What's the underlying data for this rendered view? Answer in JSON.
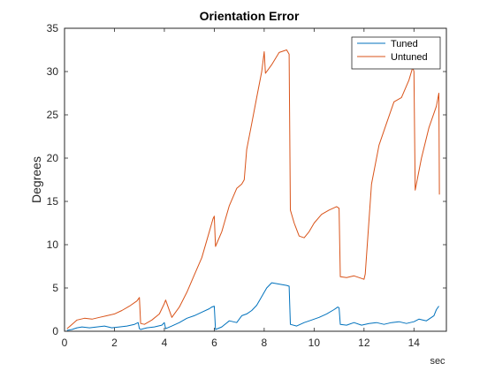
{
  "chart_data": {
    "type": "line",
    "title": "Orientation Error",
    "xlabel": "sec",
    "ylabel": "Degrees",
    "xlim": [
      0,
      15.3
    ],
    "ylim": [
      0,
      35
    ],
    "xticks": [
      0,
      2,
      4,
      6,
      8,
      10,
      12,
      14
    ],
    "yticks": [
      0,
      5,
      10,
      15,
      20,
      25,
      30,
      35
    ],
    "grid": false,
    "legend": "top-right",
    "series": [
      {
        "name": "Tuned",
        "color": "#0072BD",
        "x": [
          0.1,
          0.3,
          0.5,
          0.7,
          1.0,
          1.3,
          1.6,
          1.9,
          2.2,
          2.5,
          2.8,
          2.95,
          3.0,
          3.05,
          3.3,
          3.6,
          3.9,
          4.0,
          4.05,
          4.3,
          4.6,
          4.9,
          5.2,
          5.5,
          5.8,
          5.9,
          6.0,
          6.05,
          6.3,
          6.6,
          6.9,
          7.1,
          7.3,
          7.5,
          7.7,
          7.9,
          8.1,
          8.3,
          8.5,
          8.7,
          8.9,
          9.0,
          9.05,
          9.3,
          9.6,
          9.9,
          10.2,
          10.5,
          10.8,
          10.95,
          11.0,
          11.05,
          11.3,
          11.6,
          11.9,
          12.2,
          12.5,
          12.8,
          13.1,
          13.4,
          13.7,
          14.0,
          14.2,
          14.5,
          14.8,
          14.9,
          15.0
        ],
        "y": [
          0.1,
          0.2,
          0.4,
          0.5,
          0.4,
          0.5,
          0.6,
          0.4,
          0.5,
          0.6,
          0.8,
          1.0,
          0.3,
          0.2,
          0.4,
          0.5,
          0.7,
          1.0,
          0.3,
          0.6,
          1.0,
          1.5,
          1.8,
          2.2,
          2.6,
          2.8,
          2.9,
          0.2,
          0.5,
          1.2,
          1.0,
          1.8,
          2.0,
          2.4,
          3.0,
          4.0,
          5.0,
          5.6,
          5.5,
          5.4,
          5.3,
          5.2,
          0.8,
          0.6,
          1.0,
          1.3,
          1.6,
          2.0,
          2.5,
          2.8,
          2.7,
          0.8,
          0.7,
          1.0,
          0.7,
          0.9,
          1.0,
          0.8,
          1.0,
          1.1,
          0.9,
          1.1,
          1.4,
          1.2,
          1.8,
          2.5,
          2.9
        ]
      },
      {
        "name": "Untuned",
        "color": "#D95319",
        "x": [
          0.1,
          0.3,
          0.5,
          0.8,
          1.1,
          1.4,
          1.7,
          2.0,
          2.3,
          2.6,
          2.9,
          3.0,
          3.05,
          3.2,
          3.5,
          3.8,
          4.0,
          4.05,
          4.3,
          4.6,
          4.9,
          5.2,
          5.5,
          5.8,
          5.95,
          6.0,
          6.05,
          6.3,
          6.6,
          6.9,
          7.1,
          7.2,
          7.3,
          7.5,
          7.7,
          7.9,
          8.0,
          8.05,
          8.3,
          8.6,
          8.9,
          9.0,
          9.05,
          9.2,
          9.4,
          9.6,
          9.8,
          10.0,
          10.3,
          10.6,
          10.9,
          11.0,
          11.05,
          11.3,
          11.6,
          11.9,
          12.0,
          12.05,
          12.3,
          12.6,
          12.9,
          13.2,
          13.5,
          13.8,
          13.9,
          13.95,
          14.0,
          14.05,
          14.3,
          14.6,
          14.9,
          15.0,
          15.02
        ],
        "y": [
          0.3,
          0.8,
          1.3,
          1.5,
          1.4,
          1.6,
          1.8,
          2.0,
          2.4,
          2.9,
          3.5,
          3.9,
          0.9,
          0.8,
          1.3,
          2.0,
          3.2,
          3.6,
          1.6,
          2.8,
          4.5,
          6.5,
          8.5,
          11.5,
          13.0,
          13.3,
          9.8,
          11.5,
          14.5,
          16.5,
          17.0,
          17.5,
          21.0,
          24.0,
          27.0,
          30.0,
          32.3,
          29.8,
          30.8,
          32.2,
          32.5,
          32.0,
          14.0,
          12.5,
          11.0,
          10.8,
          11.5,
          12.5,
          13.5,
          14.0,
          14.4,
          14.2,
          6.3,
          6.2,
          6.4,
          6.1,
          6.0,
          6.6,
          17.0,
          21.5,
          24.0,
          26.5,
          27.0,
          29.0,
          30.0,
          30.5,
          30.0,
          16.3,
          20.0,
          23.5,
          26.0,
          27.5,
          15.8
        ]
      }
    ]
  }
}
